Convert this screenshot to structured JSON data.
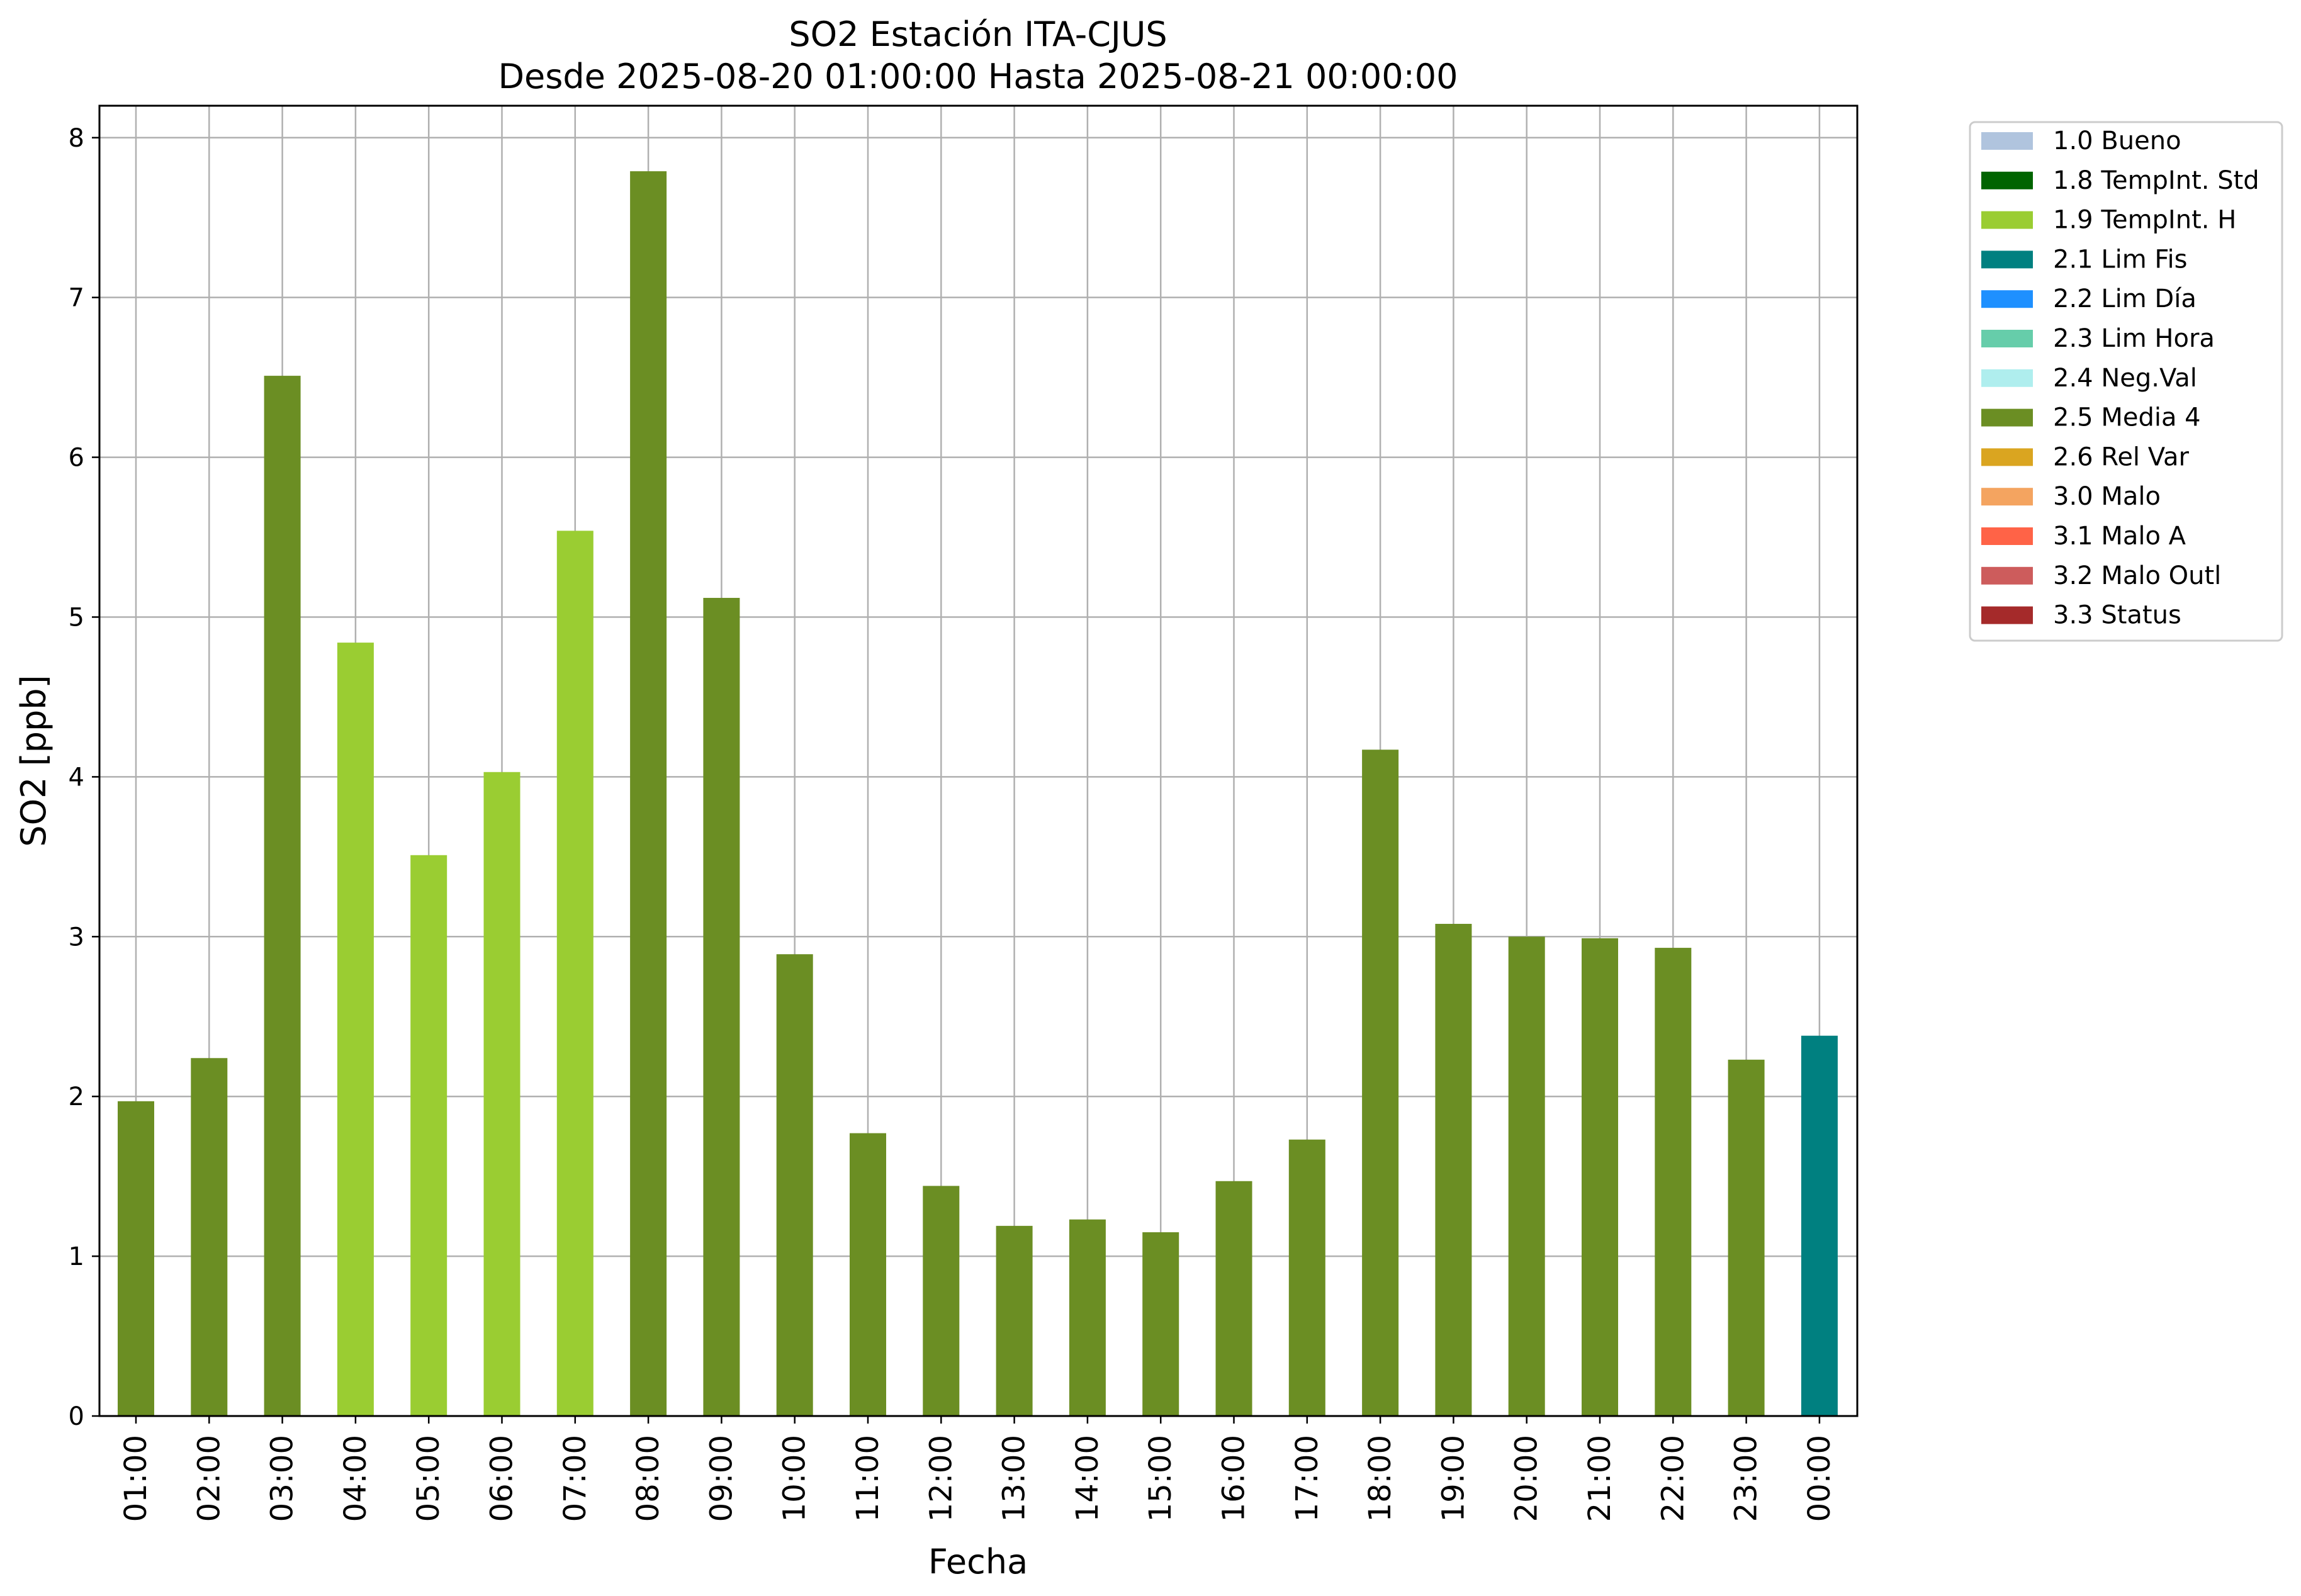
{
  "chart_data": {
    "type": "bar",
    "title": "SO2 Estación ITA-CJUS",
    "subtitle": "Desde 2025-08-20 01:00:00 Hasta 2025-08-21 00:00:00",
    "xlabel": "Fecha",
    "ylabel": "SO2 [ppb]",
    "ylim": [
      0,
      8.2
    ],
    "yticks": [
      0,
      1,
      2,
      3,
      4,
      5,
      6,
      7,
      8
    ],
    "grid": true,
    "legend_position": "outside-top-right",
    "categories": [
      "01:00",
      "02:00",
      "03:00",
      "04:00",
      "05:00",
      "06:00",
      "07:00",
      "08:00",
      "09:00",
      "10:00",
      "11:00",
      "12:00",
      "13:00",
      "14:00",
      "15:00",
      "16:00",
      "17:00",
      "18:00",
      "19:00",
      "20:00",
      "21:00",
      "22:00",
      "23:00",
      "00:00"
    ],
    "values": [
      1.97,
      2.24,
      6.51,
      4.84,
      3.51,
      4.03,
      5.54,
      7.79,
      5.12,
      2.89,
      1.77,
      1.44,
      1.19,
      1.23,
      1.15,
      1.47,
      1.73,
      4.17,
      3.08,
      3.0,
      2.99,
      2.93,
      2.23,
      2.38
    ],
    "flags": [
      "2.5 Media 4",
      "2.5 Media 4",
      "2.5 Media 4",
      "1.9 TempInt. H",
      "1.9 TempInt. H",
      "1.9 TempInt. H",
      "1.9 TempInt. H",
      "2.5 Media 4",
      "2.5 Media 4",
      "2.5 Media 4",
      "2.5 Media 4",
      "2.5 Media 4",
      "2.5 Media 4",
      "2.5 Media 4",
      "2.5 Media 4",
      "2.5 Media 4",
      "2.5 Media 4",
      "2.5 Media 4",
      "2.5 Media 4",
      "2.5 Media 4",
      "2.5 Media 4",
      "2.5 Media 4",
      "2.5 Media 4",
      "2.1 Lim Fis"
    ],
    "legend": [
      {
        "label": "1.0 Bueno",
        "color": "#b0c4de"
      },
      {
        "label": "1.8 TempInt. Std",
        "color": "#006400"
      },
      {
        "label": "1.9 TempInt. H",
        "color": "#9acd32"
      },
      {
        "label": "2.1 Lim Fis",
        "color": "#008080"
      },
      {
        "label": "2.2 Lim Día",
        "color": "#1e90ff"
      },
      {
        "label": "2.3 Lim Hora",
        "color": "#66cdaa"
      },
      {
        "label": "2.4 Neg.Val",
        "color": "#afeeee"
      },
      {
        "label": "2.5 Media 4",
        "color": "#6b8e23"
      },
      {
        "label": "2.6 Rel Var",
        "color": "#daa520"
      },
      {
        "label": "3.0 Malo",
        "color": "#f4a460"
      },
      {
        "label": "3.1 Malo A",
        "color": "#ff6347"
      },
      {
        "label": "3.2 Malo Outl",
        "color": "#cd5c5c"
      },
      {
        "label": "3.3 Status",
        "color": "#a52a2a"
      }
    ]
  }
}
